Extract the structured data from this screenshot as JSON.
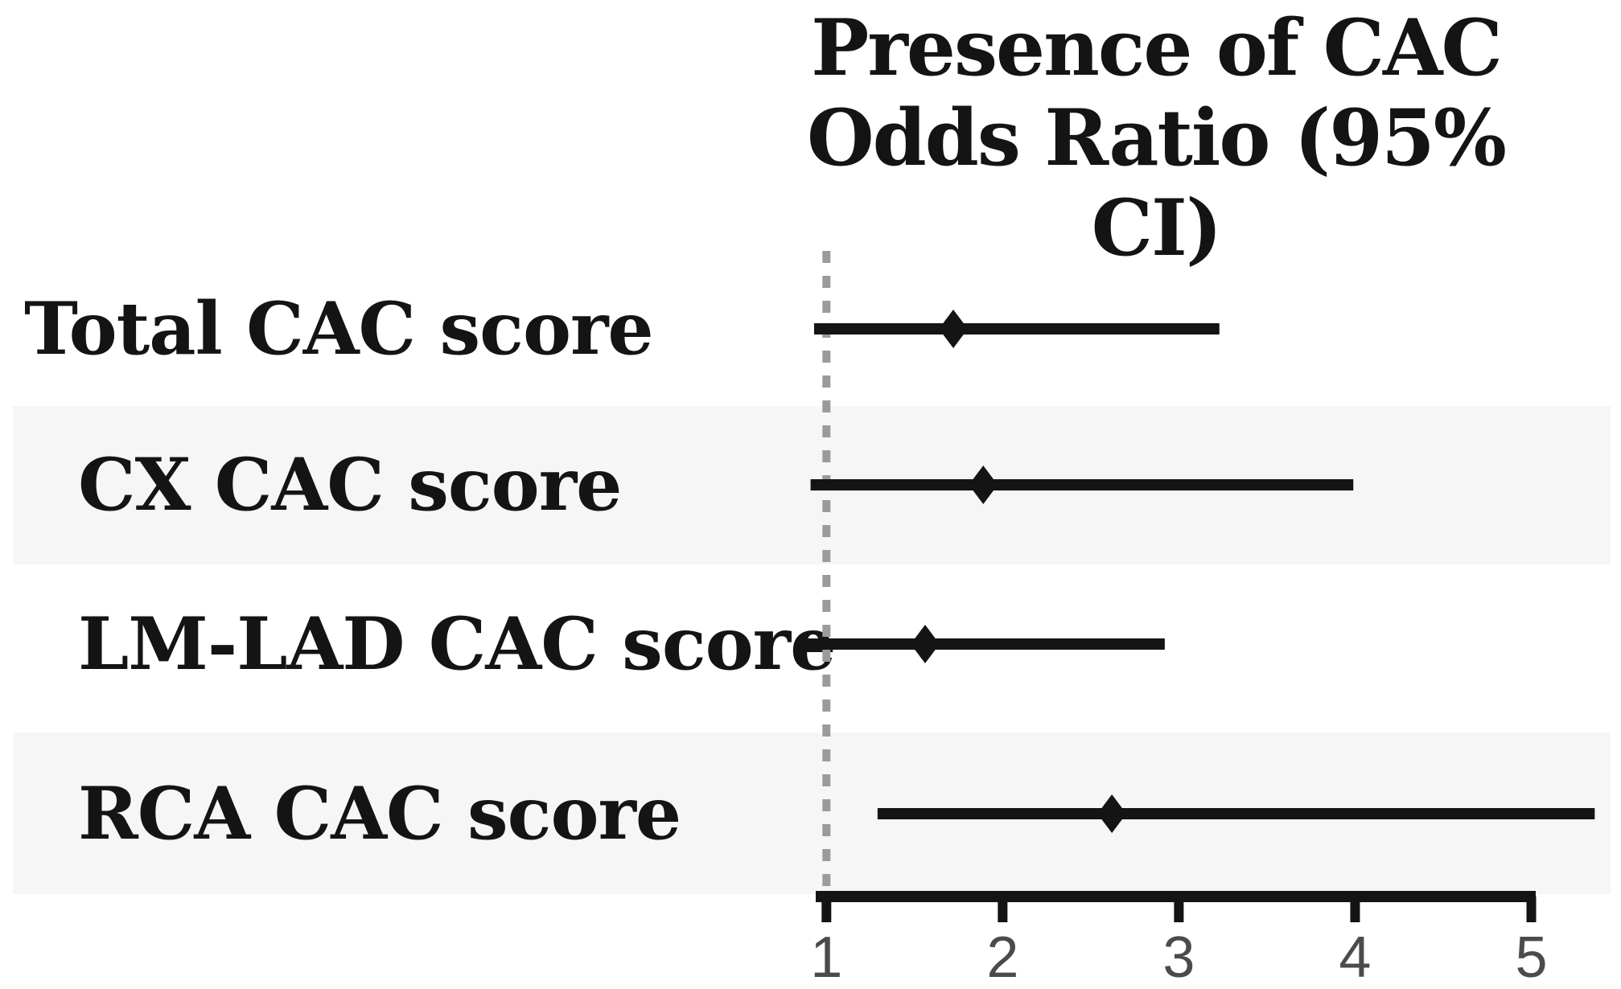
{
  "figure": {
    "title_line1": "Presence of CAC",
    "title_line2": "Odds Ratio (95% CI)"
  },
  "chart_data": {
    "type": "forest",
    "title": "Presence of CAC Odds Ratio (95% CI)",
    "orientation": "horizontal",
    "rows": [
      {
        "label": "Total CAC score",
        "or": 1.72,
        "ci_low": 0.93,
        "ci_high": 3.23
      },
      {
        "label": "CX CAC score",
        "or": 1.89,
        "ci_low": 0.91,
        "ci_high": 3.99
      },
      {
        "label": "LM-LAD CAC score",
        "or": 1.56,
        "ci_low": 0.85,
        "ci_high": 2.92
      },
      {
        "label": "RCA CAC score",
        "or": 2.62,
        "ci_low": 1.29,
        "ci_high": 5.36
      }
    ],
    "x_ticks": [
      1,
      2,
      3,
      4,
      5
    ],
    "x_axis_range": [
      0.94,
      5.02
    ],
    "reference_line": 1,
    "xlabel": "",
    "ylabel": "",
    "grid": "off",
    "legend": "none",
    "marker_shape": "diamond",
    "colors": {
      "line": "#141414",
      "marker": "#141414",
      "reference_dash": "#9b9b9b",
      "band": "#f6f6f6",
      "tick_label": "#4b4b4b",
      "title": "#141414"
    }
  }
}
